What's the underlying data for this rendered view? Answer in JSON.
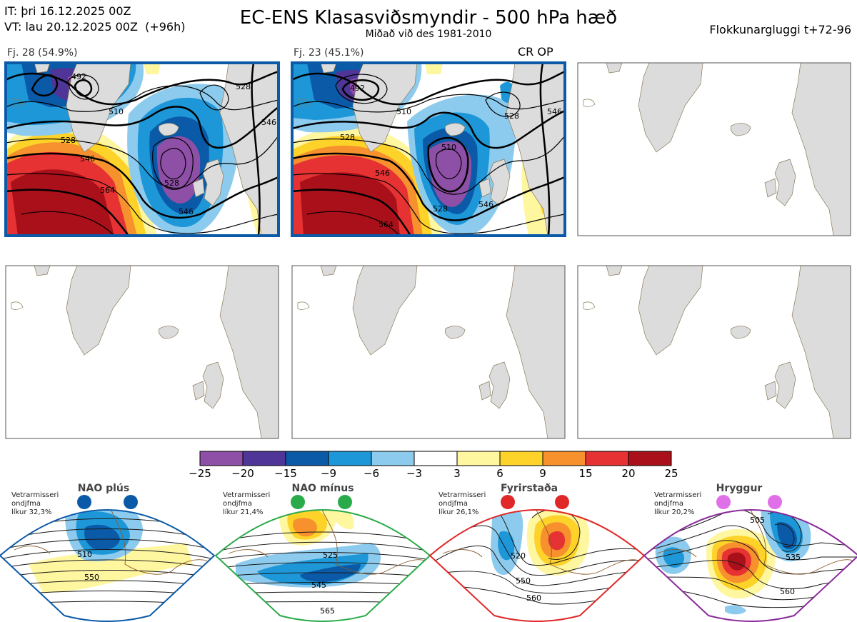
{
  "header": {
    "it_line": "IT: þri 16.12.2025 00Z",
    "vt_line": "VT: lau 20.12.2025 00Z  (+96h)",
    "title": "EC-ENS Klasasviðsmyndir - 500 hPa hæð",
    "subtitle": "Miðað við des 1981-2010",
    "window": "Flokkunargluggi t+72-96"
  },
  "panels": [
    {
      "label": "Fj. 28 (54.9%)",
      "contours": [
        "492",
        "510",
        "528",
        "546",
        "564",
        "528",
        "546",
        "528",
        "546"
      ]
    },
    {
      "label": "Fj. 23 (45.1%)",
      "badge": "CR OP",
      "contours": [
        "492",
        "510",
        "528",
        "546",
        "564",
        "510",
        "528",
        "546",
        "528",
        "546"
      ]
    }
  ],
  "colorbar": {
    "ticks": [
      "−25",
      "−20",
      "−15",
      "−9",
      "−6",
      "−3",
      "3",
      "6",
      "9",
      "15",
      "20",
      "25"
    ],
    "colors": [
      "#8e4fa6",
      "#4e3597",
      "#0b5aa7",
      "#1d97d8",
      "#8ccbee",
      "#ffffff",
      "#fff6a0",
      "#fdd32a",
      "#f6912e",
      "#e63232",
      "#a9101a"
    ]
  },
  "regimes": [
    {
      "name": "NAO plús",
      "note1": "Vetrarmisseri",
      "note2": "ondjfma",
      "note3": "líkur 32,3%",
      "color": "#0b5aa7",
      "contours": [
        "510",
        "550"
      ]
    },
    {
      "name": "NAO mínus",
      "note1": "Vetrarmisseri",
      "note2": "ondjfma",
      "note3": "líkur 21,4%",
      "color": "#2aab4a",
      "contours": [
        "525",
        "545",
        "565"
      ]
    },
    {
      "name": "Fyrirstaða",
      "note1": "Vetrarmisseri",
      "note2": "ondjfma",
      "note3": "líkur 26,1%",
      "color": "#e02828",
      "contours": [
        "520",
        "550",
        "560"
      ]
    },
    {
      "name": "Hryggur",
      "note1": "Vetrarmisseri",
      "note2": "ondjfma",
      "note3": "líkur 20,2%",
      "color": "#e070e8",
      "contours": [
        "505",
        "535",
        "560"
      ]
    }
  ]
}
